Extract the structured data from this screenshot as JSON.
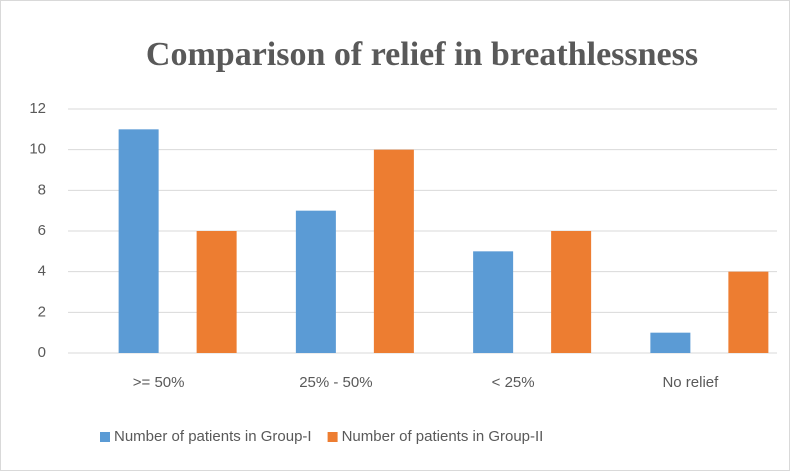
{
  "chart_data": {
    "type": "bar",
    "title": "Comparison of relief in breathlessness",
    "categories": [
      ">= 50%",
      "25% - 50%",
      "< 25%",
      "No relief"
    ],
    "series": [
      {
        "name": "Number of patients in Group-I",
        "color": "#5b9bd5",
        "values": [
          11,
          7,
          5,
          1
        ]
      },
      {
        "name": "Number of patients in Group-II",
        "color": "#ed7d31",
        "values": [
          6,
          10,
          6,
          4
        ]
      }
    ],
    "ylim": [
      0,
      12
    ],
    "yticks": [
      0,
      2,
      4,
      6,
      8,
      10,
      12
    ],
    "grid": true,
    "legend": "bottom"
  }
}
